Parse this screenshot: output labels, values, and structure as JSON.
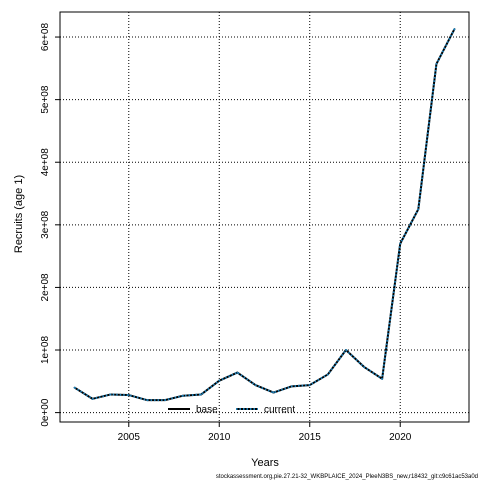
{
  "chart_data": {
    "type": "line",
    "xlabel": "Years",
    "ylabel": "Recruits (age 1)",
    "xlim": [
      2001.2,
      2023.8
    ],
    "ylim": [
      -15000000,
      640000000
    ],
    "x_ticks": [
      2005,
      2010,
      2015,
      2020
    ],
    "y_ticks": [
      0,
      100000000,
      200000000,
      300000000,
      400000000,
      500000000,
      600000000
    ],
    "y_tick_labels": [
      "0e+00",
      "1e+08",
      "2e+08",
      "3e+08",
      "4e+08",
      "5e+08",
      "6e+08"
    ],
    "grid": true,
    "legend_position": "bottom",
    "x": [
      2002,
      2003,
      2004,
      2005,
      2006,
      2007,
      2008,
      2009,
      2010,
      2011,
      2012,
      2013,
      2014,
      2015,
      2016,
      2017,
      2018,
      2019,
      2020,
      2021,
      2022,
      2023
    ],
    "series": [
      {
        "name": "base",
        "color": "#000000",
        "style": "solid",
        "values": [
          40000000,
          22000000,
          29000000,
          28000000,
          20000000,
          20000000,
          27000000,
          29000000,
          51000000,
          64000000,
          44000000,
          32000000,
          42000000,
          44000000,
          61000000,
          100000000,
          73000000,
          54000000,
          270000000,
          325000000,
          557000000,
          613000000
        ]
      },
      {
        "name": "current",
        "color": "#1f7fb5",
        "style": "dotted",
        "values": [
          40000000,
          22000000,
          29000000,
          28000000,
          20000000,
          20000000,
          27000000,
          29000000,
          51000000,
          64000000,
          44000000,
          32000000,
          42000000,
          44000000,
          61000000,
          100000000,
          73000000,
          54000000,
          270000000,
          325000000,
          557000000,
          613000000
        ]
      }
    ]
  },
  "footer_text": "stockassessment.org,pie.27.21-32_WKBPLAICE_2024_PleeN3BS_new,r18432_git:c9c61ac53a0d"
}
